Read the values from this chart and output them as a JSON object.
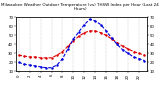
{
  "title": "Milwaukee Weather Outdoor Temperature (vs) THSW Index per Hour (Last 24 Hours)",
  "hours": [
    0,
    1,
    2,
    3,
    4,
    5,
    6,
    7,
    8,
    9,
    10,
    11,
    12,
    13,
    14,
    15,
    16,
    17,
    18,
    19,
    20,
    21,
    22,
    23
  ],
  "temp": [
    28,
    27,
    26,
    26,
    25,
    25,
    25,
    28,
    32,
    38,
    44,
    49,
    53,
    55,
    55,
    53,
    50,
    46,
    42,
    38,
    35,
    32,
    30,
    28
  ],
  "thsw": [
    20,
    18,
    17,
    16,
    15,
    14,
    14,
    17,
    24,
    35,
    46,
    54,
    62,
    68,
    66,
    62,
    55,
    47,
    40,
    34,
    30,
    26,
    24,
    22
  ],
  "temp_color": "#dd0000",
  "thsw_color": "#0000dd",
  "bg_color": "#ffffff",
  "grid_color": "#999999",
  "ylim": [
    10,
    70
  ],
  "xlim": [
    -0.5,
    23.5
  ],
  "yticks_left": [
    10,
    20,
    30,
    40,
    50,
    60,
    70
  ],
  "yticks_right": [
    10,
    20,
    30,
    40,
    50,
    60,
    70
  ],
  "xticks": [
    0,
    2,
    4,
    6,
    8,
    10,
    12,
    14,
    16,
    18,
    20,
    22
  ],
  "title_fontsize": 3.0,
  "tick_fontsize": 2.8,
  "line_width": 0.8,
  "marker_size": 1.5
}
